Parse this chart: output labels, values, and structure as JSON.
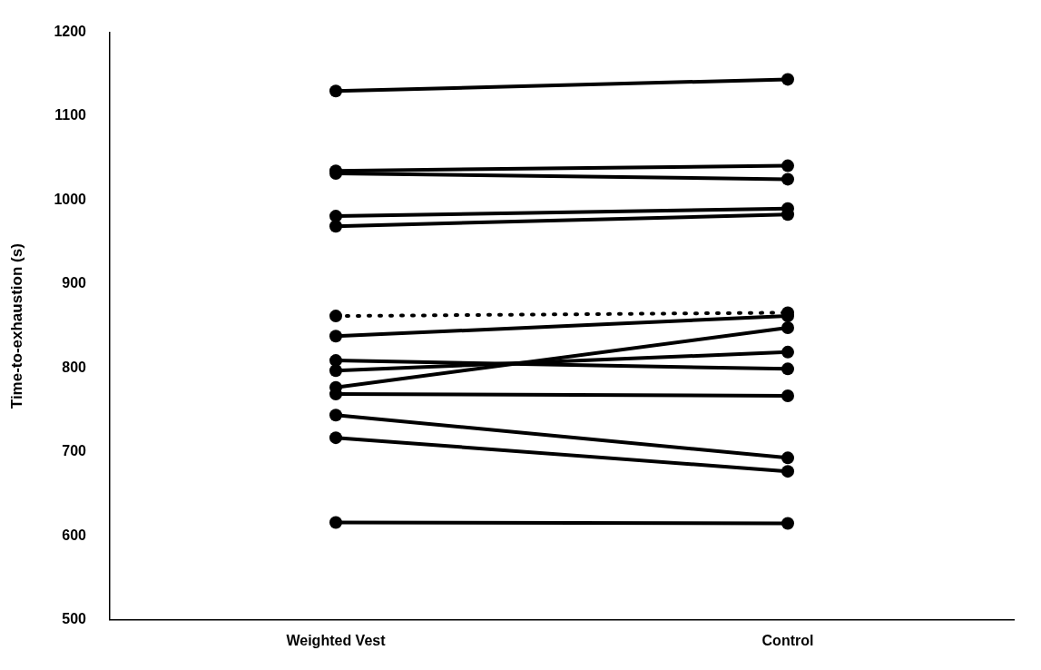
{
  "chart_data": {
    "type": "line",
    "ylabel": "Time-to-exhaustion (s)",
    "categories": [
      "Weighted Vest",
      "Control"
    ],
    "ylim": [
      500,
      1200
    ],
    "yticks": [
      500,
      600,
      700,
      800,
      900,
      1000,
      1100,
      1200
    ],
    "grid": false,
    "legend": false,
    "marker": "circle",
    "line_style": "solid",
    "series": [
      {
        "color": "#000000",
        "values": [
          1130,
          1144
        ]
      },
      {
        "color": "#000000",
        "values": [
          1035,
          1041
        ]
      },
      {
        "color": "#000000",
        "values": [
          1032,
          1025
        ]
      },
      {
        "color": "#000000",
        "values": [
          981,
          990
        ]
      },
      {
        "color": "#000000",
        "values": [
          969,
          983
        ]
      },
      {
        "color": "#000000",
        "values": [
          862,
          866
        ],
        "line_style": "dotted"
      },
      {
        "color": "#000000",
        "values": [
          838,
          862
        ]
      },
      {
        "color": "#000000",
        "values": [
          809,
          799
        ]
      },
      {
        "color": "#000000",
        "values": [
          797,
          819
        ]
      },
      {
        "color": "#000000",
        "values": [
          777,
          848
        ]
      },
      {
        "color": "#000000",
        "values": [
          769,
          767
        ]
      },
      {
        "color": "#000000",
        "values": [
          744,
          693
        ]
      },
      {
        "color": "#000000",
        "values": [
          717,
          677
        ]
      },
      {
        "color": "#000000",
        "values": [
          616,
          615
        ]
      }
    ]
  }
}
